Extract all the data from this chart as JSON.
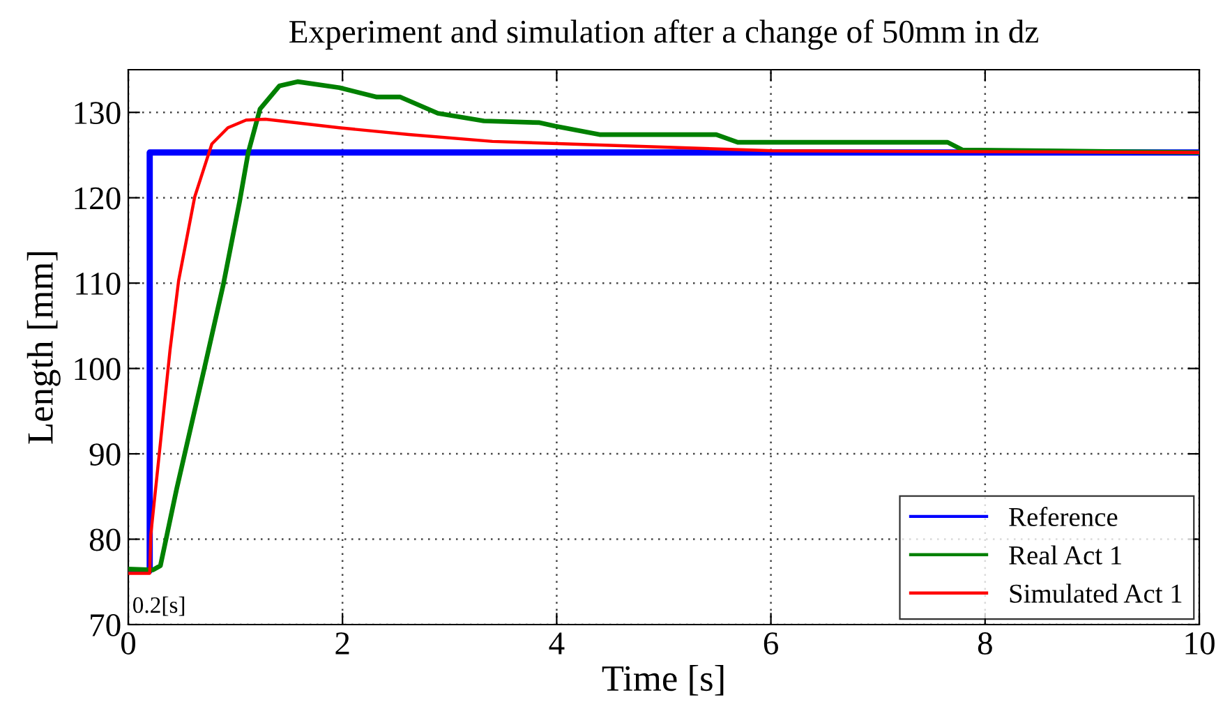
{
  "chart_data": {
    "type": "line",
    "title": "Experiment and simulation after a change of 50mm in dz",
    "xlabel": "Time [s]",
    "ylabel": "Length [mm]",
    "xlim": [
      0,
      10
    ],
    "xticks": [
      0,
      2,
      4,
      6,
      8,
      10
    ],
    "ylim": [
      70,
      135
    ],
    "yticks": [
      70,
      80,
      90,
      100,
      110,
      120,
      130
    ],
    "grid": true,
    "legend": "bottom right",
    "line_style": "solid",
    "marker": "none",
    "annotations": [
      {
        "text": "0.2[s]",
        "x": 0.2,
        "y": 76
      }
    ],
    "series": [
      {
        "name": "Reference",
        "color": "#0000ff",
        "x": [
          0,
          0.2,
          0.2,
          10
        ],
        "values": [
          76.3,
          76.3,
          125.3,
          125.3
        ]
      },
      {
        "name": "Real Act 1",
        "color": "#008000",
        "x": [
          0,
          0.23,
          0.3,
          0.45,
          0.71,
          0.89,
          1.04,
          1.12,
          1.23,
          1.41,
          1.58,
          1.97,
          2.32,
          2.54,
          2.89,
          3.32,
          3.84,
          3.98,
          4.4,
          5.49,
          5.69,
          7.65,
          7.79,
          10
        ],
        "values": [
          76.5,
          76.4,
          76.9,
          85.8,
          100,
          110,
          119.6,
          125.3,
          130.4,
          133.1,
          133.6,
          132.9,
          131.8,
          131.8,
          129.9,
          129,
          128.8,
          128.4,
          127.4,
          127.4,
          126.5,
          126.5,
          125.6,
          125.3
        ]
      },
      {
        "name": "Simulated Act 1",
        "color": "#ff0000",
        "x": [
          0,
          0.2,
          0.21,
          0.3,
          0.39,
          0.47,
          0.62,
          0.78,
          0.93,
          1.1,
          1.28,
          1.97,
          2.62,
          3.4,
          6.01,
          10
        ],
        "values": [
          76,
          76,
          80.5,
          91.3,
          102.2,
          110.3,
          120.1,
          126.3,
          128.2,
          129.1,
          129.2,
          128.2,
          127.4,
          126.6,
          125.5,
          125.3
        ]
      }
    ]
  }
}
